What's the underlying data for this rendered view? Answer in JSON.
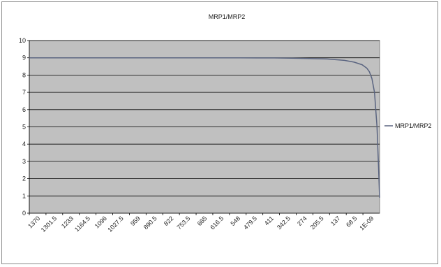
{
  "chart_data": {
    "type": "line",
    "title": "MRP1/MRP2",
    "xlabel": "",
    "ylabel": "",
    "ylim": [
      0,
      10
    ],
    "yticks": [
      "0",
      "1",
      "2",
      "3",
      "4",
      "5",
      "6",
      "7",
      "8",
      "9",
      "10"
    ],
    "x_tick_labels": [
      "1370",
      "1301.5",
      "1233",
      "1164.5",
      "1096",
      "1027.5",
      "959",
      "890.5",
      "822",
      "753.5",
      "685",
      "616.5",
      "548",
      "479.5",
      "411",
      "342.5",
      "274",
      "205.5",
      "137",
      "68.5",
      "1E-09"
    ],
    "grid": true,
    "legend_position": "right",
    "plot_background": "#c0c0c0",
    "line_color": "#5a6480",
    "series": [
      {
        "name": "MRP1/MRP2",
        "x": [
          1370,
          1301.5,
          1233,
          1164.5,
          1096,
          1027.5,
          959,
          890.5,
          822,
          753.5,
          685,
          616.5,
          548,
          479.5,
          411,
          342.5,
          274,
          205.5,
          137,
          100,
          68.5,
          50,
          40,
          30,
          20,
          10,
          5,
          1e-09
        ],
        "values": [
          9.0,
          9.0,
          9.0,
          9.0,
          9.0,
          9.0,
          9.0,
          9.0,
          9.0,
          9.0,
          9.0,
          9.0,
          9.0,
          8.99,
          8.99,
          8.98,
          8.96,
          8.93,
          8.85,
          8.75,
          8.6,
          8.4,
          8.2,
          7.8,
          7.0,
          5.0,
          3.0,
          0.9
        ]
      }
    ]
  }
}
